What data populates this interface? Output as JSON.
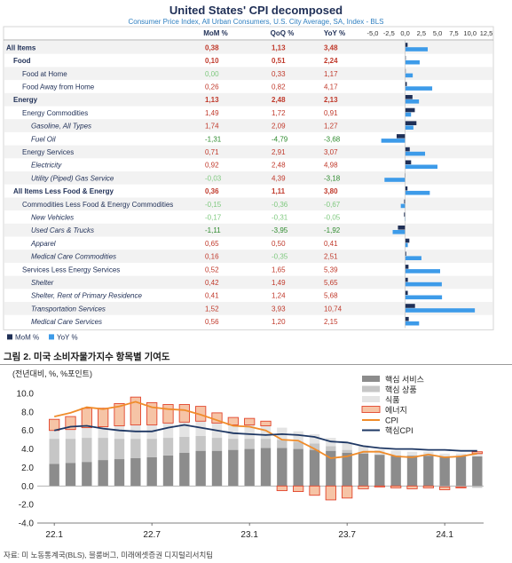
{
  "chart_data": [
    {
      "type": "table",
      "title": "United States' CPI decomposed",
      "subtitle": "Consumer Price Index, All Urban Consumers, U.S. City Average, SA, Index - BLS",
      "columns": [
        "MoM %",
        "QoQ %",
        "YoY %"
      ],
      "x_ticks": [
        "-5,0",
        "-2,5",
        "0,0",
        "2,5",
        "5,0",
        "7,5",
        "10,0",
        "12,5"
      ],
      "xlim": [
        -5,
        12.5
      ],
      "rows": [
        {
          "label": "All Items",
          "level": 0,
          "bold": true,
          "italic": false,
          "mom": "0,38",
          "qoq": "1,13",
          "yoy": "3,48",
          "mom_v": 0.38,
          "yoy_v": 3.48
        },
        {
          "label": "Food",
          "level": 1,
          "bold": true,
          "italic": false,
          "mom": "0,10",
          "qoq": "0,51",
          "yoy": "2,24",
          "mom_v": 0.1,
          "yoy_v": 2.24
        },
        {
          "label": "Food at Home",
          "level": 2,
          "bold": false,
          "italic": false,
          "mom": "0,00",
          "qoq": "0,33",
          "yoy": "1,17",
          "mom_v": 0.0,
          "yoy_v": 1.17
        },
        {
          "label": "Food Away from Home",
          "level": 2,
          "bold": false,
          "italic": false,
          "mom": "0,26",
          "qoq": "0,82",
          "yoy": "4,17",
          "mom_v": 0.26,
          "yoy_v": 4.17
        },
        {
          "label": "Energy",
          "level": 1,
          "bold": true,
          "italic": false,
          "mom": "1,13",
          "qoq": "2,48",
          "yoy": "2,13",
          "mom_v": 1.13,
          "yoy_v": 2.13
        },
        {
          "label": "Energy Commodities",
          "level": 2,
          "bold": false,
          "italic": false,
          "mom": "1,49",
          "qoq": "1,72",
          "yoy": "0,91",
          "mom_v": 1.49,
          "yoy_v": 0.91
        },
        {
          "label": "Gasoline, All Types",
          "level": 3,
          "bold": false,
          "italic": true,
          "mom": "1,74",
          "qoq": "2,09",
          "yoy": "1,27",
          "mom_v": 1.74,
          "yoy_v": 1.27
        },
        {
          "label": "Fuel Oil",
          "level": 3,
          "bold": false,
          "italic": true,
          "mom": "-1,31",
          "qoq": "-4,79",
          "yoy": "-3,68",
          "mom_v": -1.31,
          "yoy_v": -3.68
        },
        {
          "label": "Energy Services",
          "level": 2,
          "bold": false,
          "italic": false,
          "mom": "0,71",
          "qoq": "2,91",
          "yoy": "3,07",
          "mom_v": 0.71,
          "yoy_v": 3.07
        },
        {
          "label": "Electricity",
          "level": 3,
          "bold": false,
          "italic": true,
          "mom": "0,92",
          "qoq": "2,48",
          "yoy": "4,98",
          "mom_v": 0.92,
          "yoy_v": 4.98
        },
        {
          "label": "Utility (Piped) Gas Service",
          "level": 3,
          "bold": false,
          "italic": true,
          "mom": "-0,03",
          "qoq": "4,39",
          "yoy": "-3,18",
          "mom_v": -0.03,
          "yoy_v": -3.18
        },
        {
          "label": "All Items Less Food & Energy",
          "level": 1,
          "bold": true,
          "italic": false,
          "mom": "0,36",
          "qoq": "1,11",
          "yoy": "3,80",
          "mom_v": 0.36,
          "yoy_v": 3.8
        },
        {
          "label": "Commodities Less Food & Energy Commodities",
          "level": 2,
          "bold": false,
          "italic": false,
          "mom": "-0,15",
          "qoq": "-0,36",
          "yoy": "-0,67",
          "mom_v": -0.15,
          "yoy_v": -0.67
        },
        {
          "label": "New Vehicles",
          "level": 3,
          "bold": false,
          "italic": true,
          "mom": "-0,17",
          "qoq": "-0,31",
          "yoy": "-0,05",
          "mom_v": -0.17,
          "yoy_v": -0.05
        },
        {
          "label": "Used Cars & Trucks",
          "level": 3,
          "bold": false,
          "italic": true,
          "mom": "-1,11",
          "qoq": "-3,95",
          "yoy": "-1,92",
          "mom_v": -1.11,
          "yoy_v": -1.92
        },
        {
          "label": "Apparel",
          "level": 3,
          "bold": false,
          "italic": true,
          "mom": "0,65",
          "qoq": "0,50",
          "yoy": "0,41",
          "mom_v": 0.65,
          "yoy_v": 0.41
        },
        {
          "label": "Medical Care Commodities",
          "level": 3,
          "bold": false,
          "italic": true,
          "mom": "0,16",
          "qoq": "-0,35",
          "yoy": "2,51",
          "mom_v": 0.16,
          "yoy_v": 2.51
        },
        {
          "label": "Services Less Energy Services",
          "level": 2,
          "bold": false,
          "italic": false,
          "mom": "0,52",
          "qoq": "1,65",
          "yoy": "5,39",
          "mom_v": 0.52,
          "yoy_v": 5.39
        },
        {
          "label": "Shelter",
          "level": 3,
          "bold": false,
          "italic": true,
          "mom": "0,42",
          "qoq": "1,49",
          "yoy": "5,65",
          "mom_v": 0.42,
          "yoy_v": 5.65
        },
        {
          "label": "Shelter, Rent of Primary Residence",
          "level": 3,
          "bold": false,
          "italic": true,
          "mom": "0,41",
          "qoq": "1,24",
          "yoy": "5,68",
          "mom_v": 0.41,
          "yoy_v": 5.68
        },
        {
          "label": "Transportation Services",
          "level": 3,
          "bold": false,
          "italic": true,
          "mom": "1,52",
          "qoq": "3,93",
          "yoy": "10,74",
          "mom_v": 1.52,
          "yoy_v": 10.74
        },
        {
          "label": "Medical Care Services",
          "level": 3,
          "bold": false,
          "italic": true,
          "mom": "0,56",
          "qoq": "1,20",
          "yoy": "2,15",
          "mom_v": 0.56,
          "yoy_v": 2.15
        }
      ],
      "legend": [
        {
          "name": "MoM %",
          "color": "#1f2f56"
        },
        {
          "name": "YoY %",
          "color": "#3d9be9"
        }
      ],
      "colors": {
        "positive": "#c0392b",
        "negative": "#2e8b2e",
        "neutral": "#7fc97f",
        "header": "#1f2f56"
      }
    },
    {
      "type": "bar",
      "stacked": true,
      "title": "",
      "ylabel": "(전년대비, %, %포인트)",
      "ylim": [
        -4,
        10
      ],
      "y_ticks": [
        "10.0",
        "8.0",
        "6.0",
        "4.0",
        "2.0",
        "0.0",
        "-2.0",
        "-4.0"
      ],
      "categories": [
        "22.1",
        "22.2",
        "22.3",
        "22.4",
        "22.5",
        "22.6",
        "22.7",
        "22.8",
        "22.9",
        "22.10",
        "22.11",
        "22.12",
        "23.1",
        "23.2",
        "23.3",
        "23.4",
        "23.5",
        "23.6",
        "23.7",
        "23.8",
        "23.9",
        "23.10",
        "23.11",
        "23.12",
        "24.1",
        "24.2",
        "24.3"
      ],
      "x_tick_labels": [
        {
          "index": 0,
          "label": "22.1"
        },
        {
          "index": 6,
          "label": "22.7"
        },
        {
          "index": 12,
          "label": "23.1"
        },
        {
          "index": 18,
          "label": "23.7"
        },
        {
          "index": 24,
          "label": "24.1"
        }
      ],
      "series": [
        {
          "name": "핵심 서비스",
          "kind": "bar",
          "color": "#8c8c8c",
          "values": [
            2.4,
            2.5,
            2.6,
            2.8,
            2.9,
            3.0,
            3.1,
            3.3,
            3.6,
            3.8,
            3.8,
            3.9,
            4.0,
            4.1,
            4.1,
            4.0,
            3.9,
            3.8,
            3.6,
            3.5,
            3.4,
            3.3,
            3.3,
            3.3,
            3.2,
            3.2,
            3.2
          ]
        },
        {
          "name": "핵심 상품",
          "kind": "bar",
          "color": "#c6c6c6",
          "values": [
            2.7,
            2.6,
            2.6,
            2.4,
            2.2,
            2.1,
            2.0,
            1.9,
            1.7,
            1.6,
            1.4,
            1.2,
            1.1,
            1.0,
            0.9,
            0.8,
            0.7,
            0.5,
            0.3,
            0.2,
            0.0,
            0.0,
            0.0,
            0.0,
            -0.1,
            -0.1,
            -0.2
          ]
        },
        {
          "name": "식품",
          "kind": "bar",
          "color": "#e4e4e4",
          "values": [
            0.9,
            1.0,
            1.1,
            1.2,
            1.4,
            1.5,
            1.5,
            1.6,
            1.6,
            1.6,
            1.6,
            1.5,
            1.5,
            1.4,
            1.3,
            1.1,
            1.0,
            0.9,
            0.8,
            0.7,
            0.5,
            0.5,
            0.4,
            0.4,
            0.3,
            0.3,
            0.3
          ]
        },
        {
          "name": "에너지",
          "kind": "bar",
          "color": "#f6c4a6",
          "edge": "#e2452c",
          "values": [
            1.2,
            1.4,
            2.1,
            2.0,
            2.4,
            3.0,
            2.4,
            2.0,
            1.9,
            1.6,
            1.1,
            0.8,
            0.7,
            0.5,
            -0.5,
            -0.6,
            -1.0,
            -1.5,
            -1.3,
            -0.3,
            -0.1,
            -0.2,
            -0.3,
            -0.2,
            -0.3,
            -0.1,
            0.2
          ]
        },
        {
          "name": "CPI",
          "kind": "line",
          "color": "#f08c2a",
          "values": [
            7.5,
            7.9,
            8.5,
            8.3,
            8.6,
            9.1,
            8.5,
            8.3,
            8.2,
            7.7,
            7.1,
            6.5,
            6.4,
            6.0,
            5.0,
            4.9,
            4.0,
            3.0,
            3.2,
            3.7,
            3.7,
            3.2,
            3.1,
            3.4,
            3.1,
            3.2,
            3.5
          ]
        },
        {
          "name": "핵심CPI",
          "kind": "line",
          "color": "#1f3864",
          "values": [
            6.0,
            6.4,
            6.5,
            6.2,
            6.0,
            5.9,
            5.9,
            6.3,
            6.6,
            6.3,
            6.0,
            5.7,
            5.6,
            5.5,
            5.6,
            5.5,
            5.3,
            4.8,
            4.7,
            4.3,
            4.1,
            4.0,
            4.0,
            3.9,
            3.9,
            3.8,
            3.8
          ]
        }
      ]
    }
  ],
  "figure_caption": "그림 2. 미국 소비자물가지수 항목별 기여도",
  "source_note": "자료: 미 노동통계국(BLS), 블룸버그, 미래에셋증권 디지털리서치팀"
}
